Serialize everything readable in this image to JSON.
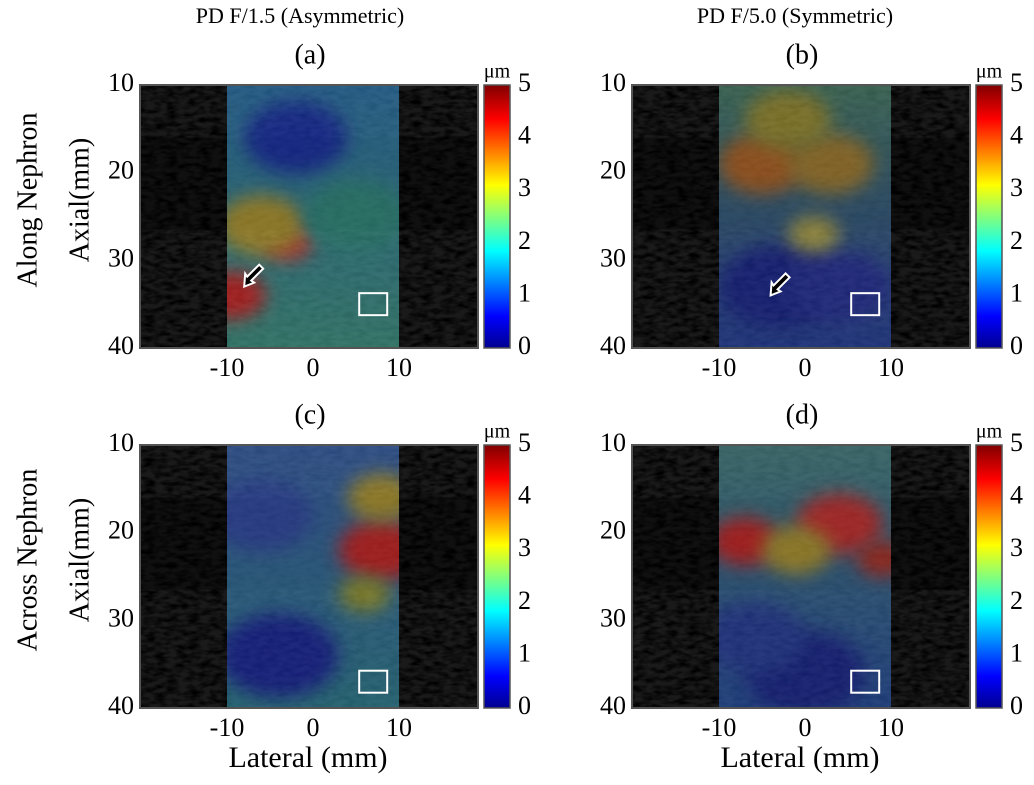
{
  "columns": [
    "PD F/1.5 (Asymmetric)",
    "PD F/5.0 (Symmetric)"
  ],
  "rows": [
    {
      "label": "Along Nephron",
      "axis_label": "Axial(mm)"
    },
    {
      "label": "Across Nephron",
      "axis_label": "Axial(mm)"
    }
  ],
  "panels": [
    {
      "label": "(a)"
    },
    {
      "label": "(b)"
    },
    {
      "label": "(c)"
    },
    {
      "label": "(d)"
    }
  ],
  "yticks": [
    10,
    20,
    30,
    40
  ],
  "xticks": [
    -10,
    0,
    10
  ],
  "x_axis_label": "Lateral (mm)",
  "colorbar": {
    "unit": "μm",
    "ticks": [
      0,
      1,
      2,
      3,
      4,
      5
    ]
  }
}
